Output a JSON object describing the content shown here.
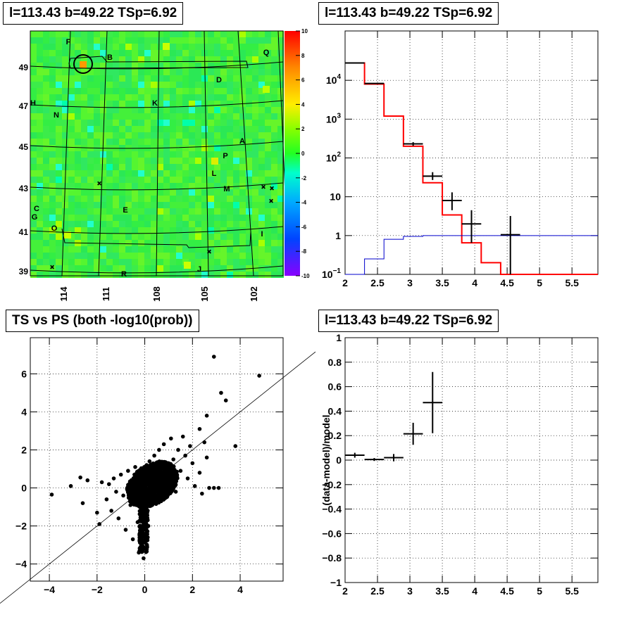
{
  "chart_data": [
    {
      "type": "heatmap",
      "title": "l=113.43 b=49.22 TSp=6.92",
      "description": "Sky map in galactic coordinates with labeled sources",
      "xlabel": "",
      "ylabel": "",
      "x_ticks": [
        "114",
        "111",
        "108",
        "105",
        "102"
      ],
      "y_ticks": [
        "39",
        "41",
        "43",
        "45",
        "47",
        "49"
      ],
      "colorbar": {
        "min": -10,
        "max": 10,
        "ticks": [
          "10",
          "8",
          "6",
          "4",
          "2",
          "0",
          "-2",
          "-4",
          "-6",
          "-8",
          "-10"
        ]
      },
      "source_labels": [
        "F",
        "B",
        "Q",
        "D",
        "K",
        "H",
        "N",
        "A",
        "P",
        "L",
        "M",
        "C",
        "G",
        "E",
        "O",
        "I",
        "J",
        "R"
      ],
      "markers": "x",
      "circle_label": "selected position"
    },
    {
      "type": "line",
      "title": "l=113.43 b=49.22 TSp=6.92",
      "xlabel": "",
      "ylabel": "",
      "xlim": [
        2,
        6
      ],
      "ylim": [
        0.1,
        100000
      ],
      "log_y": true,
      "x_ticks": [
        "2",
        "2.5",
        "3",
        "3.5",
        "4",
        "4.5",
        "5",
        "5.5"
      ],
      "y_ticks": [
        "10^-1",
        "1",
        "10",
        "10^2",
        "10^3",
        "10^4"
      ],
      "series": [
        {
          "name": "",
          "color": "#ff0000",
          "style": "step",
          "edges": [
            2.0,
            2.3,
            2.6,
            2.9,
            3.2,
            3.5,
            3.8,
            4.1,
            4.4,
            4.7,
            5.0,
            5.3,
            5.6,
            6.0
          ],
          "values": [
            28000,
            8000,
            1200,
            200,
            23,
            3.4,
            0.65,
            0.2,
            0.1,
            0.1,
            0.1,
            0.1,
            0.1
          ]
        },
        {
          "name": "",
          "color": "#0000cc",
          "style": "step",
          "edges": [
            2.0,
            2.3,
            2.6,
            2.9,
            3.2,
            3.5,
            3.8,
            4.1,
            4.4,
            4.7,
            5.0,
            5.3,
            5.6,
            6.0
          ],
          "values": [
            0.1,
            0.25,
            0.8,
            0.95,
            1.0,
            1.0,
            1.0,
            1.0,
            1.0,
            1.0,
            1.0,
            1.0,
            1.0
          ]
        },
        {
          "name": "",
          "color": "#000000",
          "style": "errorbar",
          "points": [
            {
              "x": 2.15,
              "y": 28000,
              "xerr": 0.15,
              "ylo": 27500,
              "yhi": 28500
            },
            {
              "x": 2.45,
              "y": 8300,
              "xerr": 0.15,
              "ylo": 8100,
              "yhi": 8500
            },
            {
              "x": 3.05,
              "y": 230,
              "xerr": 0.15,
              "ylo": 205,
              "yhi": 255
            },
            {
              "x": 3.35,
              "y": 34,
              "xerr": 0.15,
              "ylo": 27,
              "yhi": 43
            },
            {
              "x": 3.65,
              "y": 8,
              "xerr": 0.15,
              "ylo": 4.5,
              "yhi": 13
            },
            {
              "x": 3.95,
              "y": 2,
              "xerr": 0.15,
              "ylo": 0.65,
              "yhi": 4.5
            },
            {
              "x": 4.55,
              "y": 1.05,
              "xerr": 0.15,
              "ylo": 0.1,
              "yhi": 3.2
            }
          ]
        }
      ]
    },
    {
      "type": "scatter",
      "title": "TS vs PS (both -log10(prob))",
      "xlabel": "",
      "ylabel": "",
      "xlim": [
        -4.8,
        5.8
      ],
      "ylim": [
        -4.9,
        7.9
      ],
      "x_ticks": [
        "-4",
        "-2",
        "0",
        "2",
        "4"
      ],
      "y_ticks": [
        "-4",
        "-2",
        "0",
        "2",
        "4",
        "6"
      ],
      "points": [
        [
          -3.9,
          -0.35
        ],
        [
          -3.1,
          0.1
        ],
        [
          -2.7,
          0.55
        ],
        [
          -2.6,
          -0.8
        ],
        [
          -2.4,
          0.4
        ],
        [
          -2.0,
          -1.3
        ],
        [
          -1.9,
          -1.9
        ],
        [
          -1.8,
          0.3
        ],
        [
          -1.6,
          -0.6
        ],
        [
          -1.5,
          0.2
        ],
        [
          -1.4,
          -1.2
        ],
        [
          -1.3,
          0.5
        ],
        [
          -1.2,
          -0.2
        ],
        [
          -1.1,
          -1.6
        ],
        [
          -1.0,
          0.7
        ],
        [
          -0.9,
          -0.4
        ],
        [
          -0.8,
          -2.2
        ],
        [
          -0.7,
          0.9
        ],
        [
          -0.6,
          -0.9
        ],
        [
          -0.5,
          -2.7
        ],
        [
          -0.4,
          1.1
        ],
        [
          -0.3,
          -1.8
        ],
        [
          -0.25,
          -3.4
        ],
        [
          -0.2,
          -0.3
        ],
        [
          -0.15,
          -3.0
        ],
        [
          -0.1,
          -2.5
        ],
        [
          -0.05,
          -3.7
        ],
        [
          0.0,
          -1.2
        ],
        [
          0.05,
          -3.2
        ],
        [
          0.1,
          0.4
        ],
        [
          0.15,
          -2.0
        ],
        [
          0.2,
          1.4
        ],
        [
          0.3,
          -0.7
        ],
        [
          0.4,
          1.7
        ],
        [
          0.5,
          0.8
        ],
        [
          0.6,
          2.0
        ],
        [
          0.7,
          -0.4
        ],
        [
          0.8,
          2.3
        ],
        [
          0.9,
          1.2
        ],
        [
          1.0,
          0.2
        ],
        [
          1.1,
          2.6
        ],
        [
          1.2,
          1.5
        ],
        [
          1.3,
          -0.2
        ],
        [
          1.4,
          2.0
        ],
        [
          1.5,
          0.9
        ],
        [
          1.6,
          2.7
        ],
        [
          1.7,
          1.7
        ],
        [
          1.8,
          0.5
        ],
        [
          1.9,
          2.2
        ],
        [
          2.0,
          1.3
        ],
        [
          2.1,
          0.1
        ],
        [
          2.3,
          0.8
        ],
        [
          2.4,
          -0.3
        ],
        [
          2.5,
          2.4
        ],
        [
          2.6,
          1.6
        ],
        [
          2.7,
          0.0
        ],
        [
          2.9,
          0.0
        ],
        [
          3.1,
          0.0
        ],
        [
          2.9,
          6.9
        ],
        [
          3.2,
          5.0
        ],
        [
          3.4,
          4.6
        ],
        [
          4.8,
          5.9
        ],
        [
          3.8,
          2.2
        ],
        [
          2.6,
          3.8
        ],
        [
          2.3,
          3.1
        ]
      ],
      "density_region": "dense cluster near origin",
      "reference_line": "y = x"
    },
    {
      "type": "scatter",
      "title": "l=113.43 b=49.22 TSp=6.92",
      "xlabel": "",
      "ylabel": "(data-model)/model",
      "xlim": [
        2,
        6
      ],
      "ylim": [
        -1,
        1
      ],
      "x_ticks": [
        "2",
        "2.5",
        "3",
        "3.5",
        "4",
        "4.5",
        "5",
        "5.5"
      ],
      "y_ticks": [
        "-1",
        "-0.8",
        "-0.6",
        "-0.4",
        "-0.2",
        "0",
        "0.2",
        "0.4",
        "0.6",
        "0.8",
        "1"
      ],
      "points": [
        {
          "x": 2.15,
          "y": 0.04,
          "xerr": 0.15,
          "yerr": 0.02
        },
        {
          "x": 2.45,
          "y": 0.005,
          "xerr": 0.15,
          "yerr": 0.012
        },
        {
          "x": 2.75,
          "y": 0.02,
          "xerr": 0.15,
          "yerr": 0.03
        },
        {
          "x": 3.05,
          "y": 0.215,
          "xerr": 0.15,
          "yerr": 0.09
        },
        {
          "x": 3.35,
          "y": 0.47,
          "xerr": 0.15,
          "yerr": 0.25
        }
      ]
    }
  ]
}
